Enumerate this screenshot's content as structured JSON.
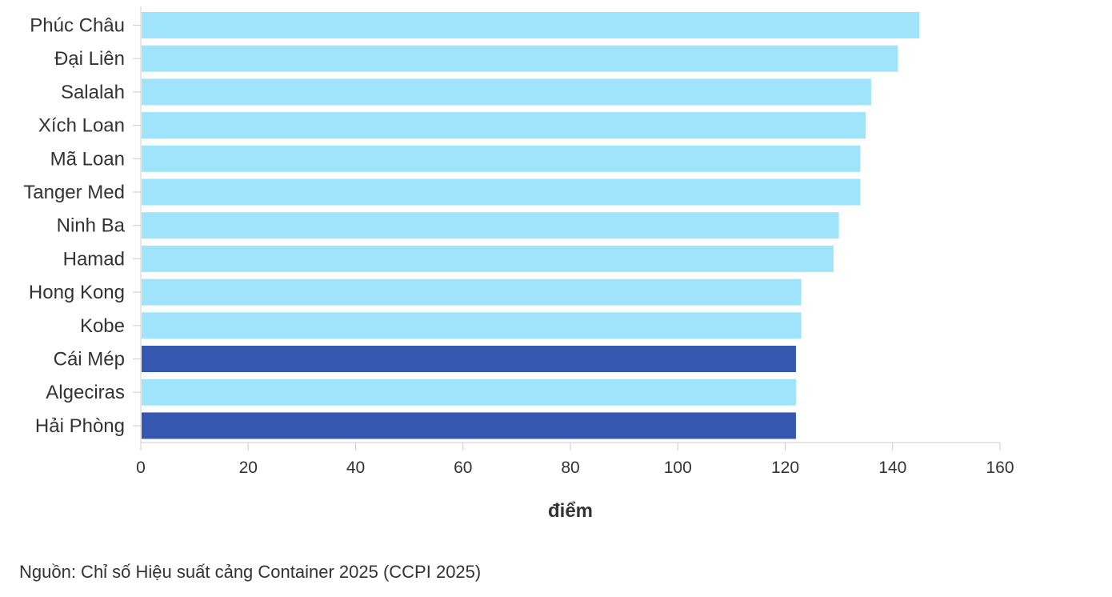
{
  "chart_data": {
    "type": "bar",
    "orientation": "horizontal",
    "categories": [
      "Phúc Châu",
      "Đại Liên",
      "Salalah",
      "Xích Loan",
      "Mã Loan",
      "Tanger Med",
      "Ninh Ba",
      "Hamad",
      "Hong Kong",
      "Kobe",
      "Cái Mép",
      "Algeciras",
      "Hải Phòng"
    ],
    "values": [
      145,
      141,
      136,
      135,
      134,
      134,
      130,
      129,
      123,
      123,
      122,
      122,
      122
    ],
    "highlighted": [
      "Cái Mép",
      "Hải Phòng"
    ],
    "xlabel": "điểm",
    "ylabel": "",
    "xlim": [
      0,
      160
    ],
    "xticks": [
      0,
      20,
      40,
      60,
      80,
      100,
      120,
      140,
      160
    ],
    "grid": false,
    "colors": {
      "default": "#a0e4fc",
      "highlight": "#3557b0",
      "axis": "#cccccc"
    }
  },
  "source": "Nguồn: Chỉ số Hiệu suất cảng Container 2025 (CCPI 2025)"
}
